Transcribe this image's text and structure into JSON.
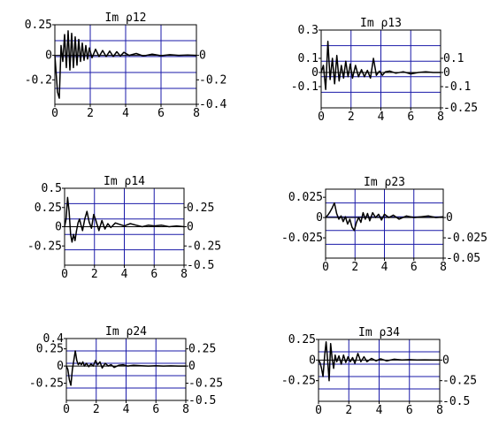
{
  "chart_data": [
    {
      "type": "line",
      "title": "Im ρ12",
      "xlim": [
        0,
        8
      ],
      "ylim": [
        -0.4,
        0.25
      ],
      "x_ticks": [
        "0",
        "2",
        "4",
        "6",
        "8"
      ],
      "y_ticks_left": [
        {
          "value": 0.25,
          "label": "0.25"
        },
        {
          "value": 0,
          "label": "0"
        },
        {
          "value": -0.2,
          "label": "-0.2"
        }
      ],
      "y_ticks_right": [
        {
          "value": 0,
          "label": "0"
        },
        {
          "value": -0.2,
          "label": "-0.2"
        },
        {
          "value": -0.4,
          "label": "-0.4"
        }
      ],
      "grid": true,
      "series": [
        {
          "x": [
            0,
            0.15,
            0.25,
            0.35,
            0.45,
            0.55,
            0.65,
            0.75,
            0.85,
            0.95,
            1.05,
            1.15,
            1.25,
            1.35,
            1.45,
            1.55,
            1.65,
            1.75,
            1.85,
            1.95,
            2.1,
            2.3,
            2.5,
            2.7,
            2.9,
            3.1,
            3.3,
            3.5,
            3.7,
            3.9,
            4.2,
            4.6,
            5.0,
            5.5,
            6.0,
            6.5,
            7.0,
            7.5,
            8.0
          ],
          "y": [
            0,
            -0.3,
            -0.35,
            0.08,
            -0.05,
            0.17,
            -0.1,
            0.2,
            -0.12,
            0.18,
            -0.1,
            0.15,
            -0.08,
            0.13,
            -0.05,
            0.1,
            -0.04,
            0.08,
            -0.03,
            0.06,
            -0.02,
            0.05,
            -0.01,
            0.04,
            -0.01,
            0.035,
            -0.01,
            0.03,
            -0.005,
            0.025,
            0.0,
            0.015,
            -0.005,
            0.01,
            -0.003,
            0.005,
            0.0,
            0.003,
            0.0
          ]
        }
      ]
    },
    {
      "type": "line",
      "title": "Im ρ13",
      "xlim": [
        0,
        8
      ],
      "ylim": [
        -0.25,
        0.3
      ],
      "x_ticks": [
        "0",
        "2",
        "4",
        "6",
        "8"
      ],
      "y_ticks_left": [
        {
          "value": 0.3,
          "label": "0.3"
        },
        {
          "value": 0.1,
          "label": "0.1"
        },
        {
          "value": 0,
          "label": "0"
        },
        {
          "value": -0.1,
          "label": "-0.1"
        }
      ],
      "y_ticks_right": [
        {
          "value": 0.1,
          "label": "0.1"
        },
        {
          "value": 0,
          "label": "0"
        },
        {
          "value": -0.1,
          "label": "-0.1"
        },
        {
          "value": -0.25,
          "label": "-0.25"
        }
      ],
      "grid": true,
      "series": [
        {
          "x": [
            0,
            0.15,
            0.3,
            0.45,
            0.6,
            0.75,
            0.9,
            1.05,
            1.2,
            1.35,
            1.5,
            1.65,
            1.8,
            1.95,
            2.1,
            2.3,
            2.5,
            2.7,
            2.9,
            3.1,
            3.3,
            3.5,
            3.7,
            3.9,
            4.1,
            4.3,
            4.6,
            5.0,
            5.5,
            6.0,
            6.5,
            7.0,
            7.5,
            8.0
          ],
          "y": [
            0,
            0.05,
            -0.12,
            0.22,
            -0.05,
            0.1,
            -0.08,
            0.12,
            -0.06,
            0.05,
            -0.04,
            0.08,
            -0.03,
            0.06,
            -0.04,
            0.05,
            -0.03,
            0.02,
            -0.03,
            0.015,
            -0.04,
            0.1,
            -0.02,
            0.01,
            -0.02,
            0.005,
            0.01,
            -0.005,
            0.005,
            -0.01,
            0.0,
            0.005,
            0.0,
            0.0
          ]
        }
      ]
    },
    {
      "type": "line",
      "title": "Im ρ14",
      "xlim": [
        0,
        8
      ],
      "ylim": [
        -0.5,
        0.5
      ],
      "x_ticks": [
        "0",
        "2",
        "4",
        "6",
        "8"
      ],
      "y_ticks_left": [
        {
          "value": 0.5,
          "label": "0.5"
        },
        {
          "value": 0.25,
          "label": "0.25"
        },
        {
          "value": 0,
          "label": "0"
        },
        {
          "value": -0.25,
          "label": "-0.25"
        }
      ],
      "y_ticks_right": [
        {
          "value": 0.25,
          "label": "0.25"
        },
        {
          "value": 0,
          "label": "0"
        },
        {
          "value": -0.25,
          "label": "-0.25"
        },
        {
          "value": -0.5,
          "label": "-0.5"
        }
      ],
      "grid": true,
      "series": [
        {
          "x": [
            0,
            0.1,
            0.2,
            0.3,
            0.4,
            0.5,
            0.6,
            0.7,
            0.8,
            0.9,
            1.0,
            1.1,
            1.2,
            1.35,
            1.5,
            1.65,
            1.8,
            1.95,
            2.1,
            2.3,
            2.5,
            2.7,
            2.9,
            3.1,
            3.4,
            3.7,
            4.0,
            4.4,
            4.8,
            5.2,
            5.6,
            6.0,
            6.5,
            7.0,
            7.5,
            8.0
          ],
          "y": [
            0,
            0.1,
            0.38,
            0.2,
            -0.1,
            -0.2,
            -0.1,
            -0.18,
            -0.05,
            0.05,
            0.1,
            0.02,
            -0.05,
            0.1,
            0.2,
            0.06,
            -0.02,
            0.16,
            0.08,
            -0.05,
            0.08,
            -0.03,
            0.04,
            -0.01,
            0.05,
            0.03,
            0.01,
            0.04,
            0.02,
            0.0,
            0.02,
            0.01,
            0.02,
            0.0,
            0.01,
            0.0
          ]
        }
      ]
    },
    {
      "type": "line",
      "title": "Im ρ23",
      "xlim": [
        0,
        8
      ],
      "ylim": [
        -0.05,
        0.035
      ],
      "x_ticks": [
        "0",
        "2",
        "4",
        "6",
        "8"
      ],
      "y_ticks_left": [
        {
          "value": 0.025,
          "label": "0.025"
        },
        {
          "value": 0,
          "label": "0"
        },
        {
          "value": -0.025,
          "label": "-0.025"
        }
      ],
      "y_ticks_right": [
        {
          "value": 0,
          "label": "0"
        },
        {
          "value": -0.025,
          "label": "-0.025"
        },
        {
          "value": -0.05,
          "label": "-0.05"
        }
      ],
      "grid": true,
      "series": [
        {
          "x": [
            0,
            0.15,
            0.3,
            0.45,
            0.6,
            0.75,
            0.9,
            1.05,
            1.2,
            1.35,
            1.5,
            1.65,
            1.8,
            1.95,
            2.1,
            2.25,
            2.4,
            2.55,
            2.7,
            2.85,
            3.0,
            3.2,
            3.4,
            3.6,
            3.8,
            4.0,
            4.3,
            4.6,
            5.0,
            5.5,
            6.0,
            6.5,
            7.0,
            7.5,
            8.0
          ],
          "y": [
            0,
            0.003,
            0.007,
            0.012,
            0.018,
            0.005,
            -0.002,
            0.002,
            -0.005,
            0.001,
            -0.008,
            -0.002,
            -0.012,
            -0.016,
            -0.006,
            0.0,
            -0.006,
            0.006,
            -0.002,
            0.005,
            -0.004,
            0.006,
            0.0,
            0.004,
            -0.003,
            0.004,
            0.0,
            0.003,
            -0.002,
            0.002,
            0.0,
            0.001,
            0.002,
            0.0,
            0.001
          ]
        }
      ]
    },
    {
      "type": "line",
      "title": "Im ρ24",
      "xlim": [
        0,
        8
      ],
      "ylim": [
        -0.5,
        0.4
      ],
      "x_ticks": [
        "0",
        "2",
        "4",
        "6",
        "8"
      ],
      "y_ticks_left": [
        {
          "value": 0.4,
          "label": "0.4"
        },
        {
          "value": 0.25,
          "label": "0.25"
        },
        {
          "value": 0,
          "label": "0"
        },
        {
          "value": -0.25,
          "label": "-0.25"
        }
      ],
      "y_ticks_right": [
        {
          "value": 0.25,
          "label": "0.25"
        },
        {
          "value": 0,
          "label": "0"
        },
        {
          "value": -0.25,
          "label": "-0.25"
        },
        {
          "value": -0.5,
          "label": "-0.5"
        }
      ],
      "grid": true,
      "series": [
        {
          "x": [
            0,
            0.1,
            0.2,
            0.3,
            0.4,
            0.5,
            0.6,
            0.7,
            0.8,
            0.9,
            1.0,
            1.1,
            1.2,
            1.35,
            1.5,
            1.65,
            1.8,
            1.95,
            2.1,
            2.25,
            2.4,
            2.6,
            2.8,
            3.0,
            3.2,
            3.5,
            3.8,
            4.1,
            4.5,
            5.0,
            5.5,
            6.0,
            6.5,
            7.0,
            7.5,
            8.0
          ],
          "y": [
            0,
            -0.05,
            -0.2,
            -0.28,
            -0.05,
            0.08,
            0.22,
            0.08,
            0.02,
            0.05,
            0.02,
            0.06,
            0.0,
            0.04,
            -0.01,
            0.03,
            0.0,
            0.08,
            0.02,
            0.06,
            -0.03,
            0.04,
            0.0,
            0.02,
            -0.02,
            0.01,
            0.02,
            0.0,
            0.01,
            0.005,
            0.0,
            0.005,
            0.0,
            0.003,
            0.0,
            0.0
          ]
        }
      ]
    },
    {
      "type": "line",
      "title": "Im ρ34",
      "xlim": [
        0,
        8
      ],
      "ylim": [
        -0.5,
        0.25
      ],
      "x_ticks": [
        "0",
        "2",
        "4",
        "6",
        "8"
      ],
      "y_ticks_left": [
        {
          "value": 0.25,
          "label": "0.25"
        },
        {
          "value": 0,
          "label": "0"
        },
        {
          "value": -0.25,
          "label": "-0.25"
        }
      ],
      "y_ticks_right": [
        {
          "value": 0,
          "label": "0"
        },
        {
          "value": -0.25,
          "label": "-0.25"
        },
        {
          "value": -0.5,
          "label": "-0.5"
        }
      ],
      "grid": true,
      "series": [
        {
          "x": [
            0,
            0.1,
            0.2,
            0.3,
            0.4,
            0.5,
            0.6,
            0.7,
            0.8,
            0.9,
            1.0,
            1.1,
            1.2,
            1.35,
            1.5,
            1.65,
            1.8,
            1.95,
            2.1,
            2.25,
            2.4,
            2.6,
            2.8,
            3.0,
            3.2,
            3.5,
            3.8,
            4.1,
            4.5,
            5.0,
            5.5,
            6.0,
            6.5,
            7.0,
            7.5,
            8.0
          ],
          "y": [
            0,
            -0.03,
            -0.1,
            -0.2,
            0.05,
            0.22,
            0.0,
            -0.25,
            0.2,
            0.02,
            -0.1,
            0.06,
            -0.02,
            0.05,
            -0.05,
            0.06,
            -0.03,
            0.04,
            -0.02,
            0.03,
            -0.04,
            0.08,
            -0.02,
            0.04,
            -0.02,
            0.02,
            -0.01,
            0.015,
            -0.01,
            0.01,
            0.0,
            0.005,
            0.0,
            0.003,
            0.0,
            0.0
          ]
        }
      ]
    }
  ]
}
